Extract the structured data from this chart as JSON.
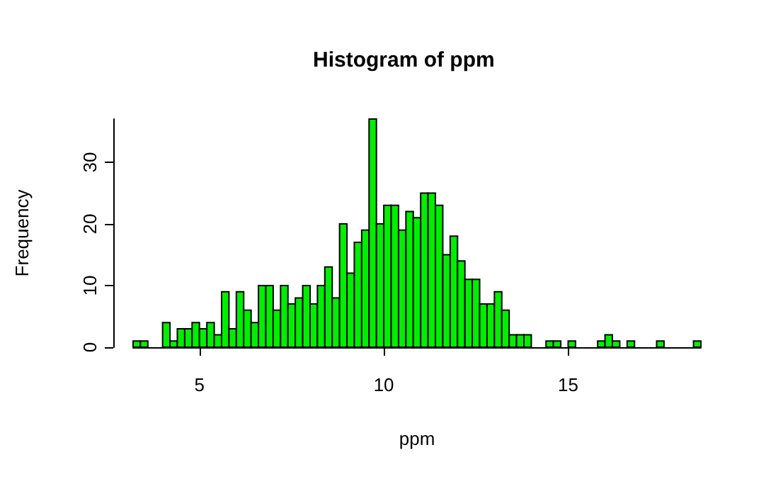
{
  "chart_data": {
    "type": "histogram",
    "title": "Histogram of ppm",
    "xlabel": "ppm",
    "ylabel": "Frequency",
    "bins": [
      3.2,
      3.4,
      3.6,
      3.8,
      4.0,
      4.2,
      4.4,
      4.6,
      4.8,
      5.0,
      5.2,
      5.4,
      5.6,
      5.8,
      6.0,
      6.2,
      6.4,
      6.6,
      6.8,
      7.0,
      7.2,
      7.4,
      7.6,
      7.8,
      8.0,
      8.2,
      8.4,
      8.6,
      8.8,
      9.0,
      9.2,
      9.4,
      9.6,
      9.8,
      10.0,
      10.2,
      10.4,
      10.6,
      10.8,
      11.0,
      11.2,
      11.4,
      11.6,
      11.8,
      12.0,
      12.2,
      12.4,
      12.6,
      12.8,
      13.0,
      13.2,
      13.4,
      13.6,
      13.8,
      14.0,
      14.2,
      14.4,
      14.6,
      14.8,
      15.0,
      15.2,
      15.4,
      15.6,
      15.8,
      16.0,
      16.2,
      16.4,
      16.6,
      16.8,
      17.0,
      17.2,
      17.4,
      17.6,
      17.8,
      18.0,
      18.2,
      18.4,
      18.6
    ],
    "values": [
      1,
      1,
      0,
      0,
      4,
      1,
      3,
      3,
      4,
      3,
      4,
      2,
      9,
      3,
      9,
      6,
      4,
      10,
      10,
      6,
      10,
      7,
      8,
      10,
      7,
      10,
      13,
      8,
      20,
      12,
      17,
      19,
      37,
      20,
      23,
      23,
      19,
      22,
      21,
      25,
      25,
      23,
      15,
      18,
      14,
      11,
      11,
      7,
      7,
      9,
      6,
      2,
      2,
      2,
      0,
      0,
      1,
      1,
      0,
      1,
      0,
      0,
      0,
      1,
      2,
      1,
      0,
      1,
      0,
      0,
      0,
      1,
      0,
      0,
      0,
      0,
      1
    ],
    "color": "#00ee00",
    "xlim": [
      3.2,
      18.6
    ],
    "ylim": [
      0,
      37
    ],
    "xticks": [
      5,
      10,
      15
    ],
    "yticks": [
      0,
      10,
      20,
      30
    ],
    "grid": false
  }
}
